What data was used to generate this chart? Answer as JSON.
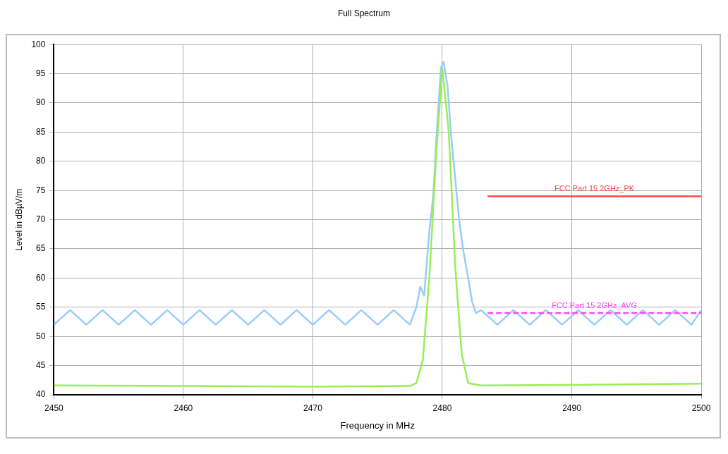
{
  "chart_data": {
    "type": "line",
    "title": "Full Spectrum",
    "xlabel": "Frequency in MHz",
    "ylabel": "Level in dBµV/m",
    "xlim": [
      2450,
      2500
    ],
    "ylim": [
      40,
      100
    ],
    "xticks": [
      2450,
      2460,
      2470,
      2480,
      2490,
      2500
    ],
    "yticks": [
      40,
      45,
      50,
      55,
      60,
      65,
      70,
      75,
      80,
      85,
      90,
      95,
      100
    ],
    "grid": true,
    "series": [
      {
        "color": "#99ccf9",
        "x": [
          2450,
          2451.25,
          2452.5,
          2453.75,
          2455,
          2456.25,
          2457.5,
          2458.75,
          2460,
          2461.25,
          2462.5,
          2463.75,
          2465,
          2466.25,
          2467.5,
          2468.75,
          2470,
          2471.25,
          2472.5,
          2473.75,
          2475,
          2476.25,
          2477.5,
          2478,
          2478.3,
          2478.6,
          2479,
          2479.3,
          2479.6,
          2479.9,
          2480.1,
          2480.4,
          2480.7,
          2481,
          2481.3,
          2481.6,
          2482,
          2482.3,
          2482.6,
          2483,
          2484.25,
          2485.5,
          2486.75,
          2488,
          2489.25,
          2490.5,
          2491.75,
          2493,
          2494.25,
          2495.5,
          2496.75,
          2498,
          2499.25,
          2500
        ],
        "values": [
          52,
          54.5,
          52,
          54.5,
          52,
          54.5,
          52,
          54.5,
          52,
          54.5,
          52,
          54.5,
          52,
          54.5,
          52,
          54.5,
          52,
          54.5,
          52,
          54.5,
          52,
          54.5,
          52,
          55,
          58.5,
          57,
          68,
          74,
          86,
          96,
          97,
          93,
          84,
          77,
          70,
          65,
          60,
          56,
          54,
          54.5,
          52,
          54.5,
          52,
          54.5,
          52,
          54.5,
          52,
          54.5,
          52,
          54.5,
          52,
          54.5,
          52,
          54.5
        ]
      },
      {
        "color": "#99ee55",
        "x": [
          2450,
          2460,
          2470,
          2477.5,
          2478,
          2478.5,
          2479,
          2479.5,
          2480,
          2480.5,
          2481,
          2481.5,
          2482,
          2483,
          2490,
          2500
        ],
        "values": [
          41.6,
          41.5,
          41.4,
          41.5,
          42,
          46,
          60,
          80,
          96,
          85,
          62,
          47,
          42,
          41.6,
          41.7,
          41.9
        ]
      },
      {
        "name": "FCC Part 15 2GHz_PK",
        "color": "#ff4444",
        "x": [
          2483.5,
          2500
        ],
        "values": [
          74,
          74
        ],
        "line_style": "solid"
      },
      {
        "name": "FCC Part 15 2GHz_AVG",
        "color": "#ff44ff",
        "x": [
          2483.5,
          2500
        ],
        "values": [
          54,
          54
        ],
        "line_style": "dashed"
      }
    ]
  }
}
